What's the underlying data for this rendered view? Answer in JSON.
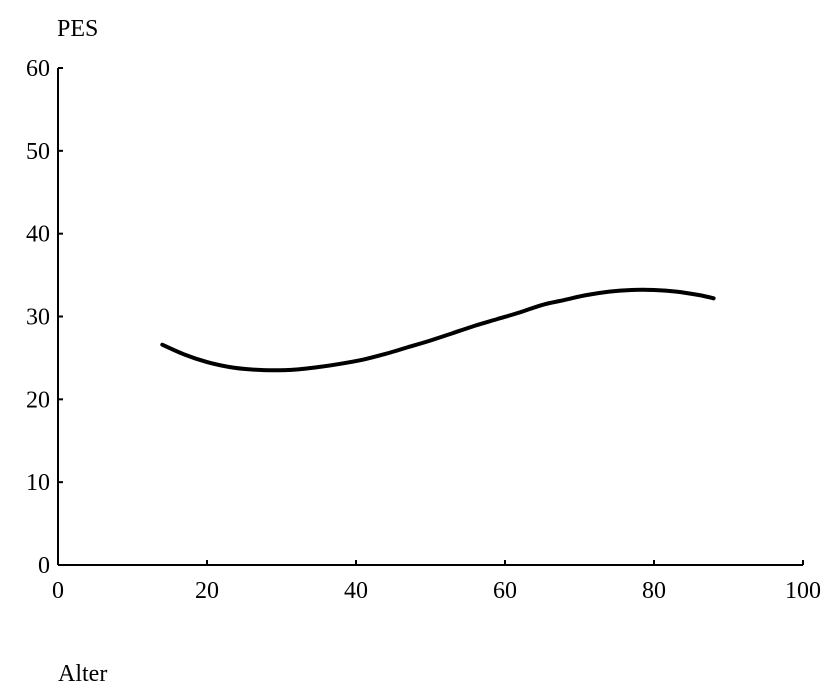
{
  "chart_data": {
    "type": "line",
    "title": "",
    "xlabel": "Alter",
    "ylabel": "PES",
    "xlim": [
      0,
      100
    ],
    "ylim": [
      0,
      60
    ],
    "xticks": [
      0,
      20,
      40,
      60,
      80,
      100
    ],
    "yticks": [
      0,
      10,
      20,
      30,
      40,
      50,
      60
    ],
    "grid": false,
    "legend": "none",
    "line_color": "#000000",
    "series": [
      {
        "x": [
          14,
          17,
          20,
          23,
          26,
          29,
          32,
          35,
          38,
          41,
          44,
          47,
          50,
          53,
          56,
          59,
          62,
          65,
          68,
          71,
          74,
          77,
          80,
          83,
          86,
          88
        ],
        "y": [
          26.6,
          25.4,
          24.5,
          23.9,
          23.6,
          23.5,
          23.6,
          23.9,
          24.3,
          24.8,
          25.5,
          26.3,
          27.1,
          28.0,
          28.9,
          29.7,
          30.5,
          31.4,
          32.0,
          32.6,
          33.0,
          33.2,
          33.2,
          33.0,
          32.6,
          32.2
        ]
      }
    ]
  }
}
